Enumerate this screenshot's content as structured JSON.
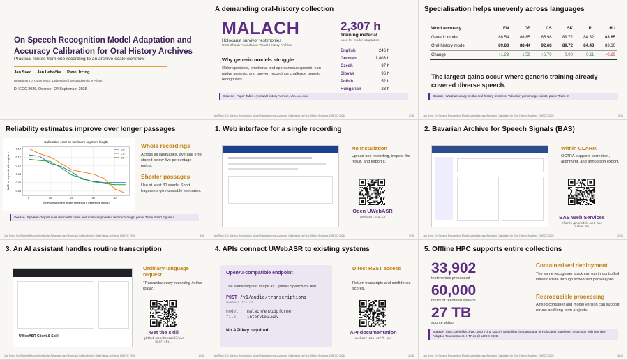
{
  "footer": "Jan Švec: On Speech Recognition Model Adaptation and Accuracy Calibration for Oral History Archives, DHECC 2026",
  "slides": [
    {
      "title": "On Speech Recognition Model Adaptation and Accuracy Calibration for Oral History Archives",
      "subtitle": "Practical routes from one recording to an archive-scale workflow",
      "authors": [
        "Jan Švec",
        "Jan Lehečka",
        "Pavel Ircing"
      ],
      "affiliation": "Department of Cybernetics, University of West Bohemia in Pilsen",
      "venue": "DHECC 2026, Odense",
      "date": "24 September 2026"
    },
    {
      "title": "A demanding oral-history collection",
      "collection": "MALACH",
      "collection_desc": "Holocaust survivor testimonies",
      "archive": "USC Shoah Foundation Visual History Archive",
      "heading": "Why generic models struggle",
      "text": "Older speakers, emotional and spontaneous speech, non-native accents, and uneven recordings challenge generic recognisers.",
      "hours": "2,307 h",
      "hours_label": "Training material",
      "hours_note": "used for model adaptation",
      "languages": [
        [
          "English",
          "246 h"
        ],
        [
          "German",
          "1,803 h"
        ],
        [
          "Czech",
          "87 h"
        ],
        [
          "Slovak",
          "96 h"
        ],
        [
          "Polish",
          "52 h"
        ],
        [
          "Hungarian",
          "23 h"
        ]
      ],
      "source_label": "Source",
      "source": "Paper Table 1; Visual History Archive,",
      "source_link": "vha.usc.edu",
      "page": "3/16"
    },
    {
      "title": "Specialisation helps unevenly across languages",
      "table": {
        "header": [
          "Word accuracy",
          "EN",
          "DE",
          "CS",
          "SK",
          "PL",
          "HU"
        ],
        "rows": [
          [
            "Generic model",
            88.54,
            86.85,
            85.98,
            89.72,
            84.32,
            83.65
          ],
          [
            "Oral-history model",
            89.83,
            88.44,
            92.68,
            89.72,
            84.43,
            83.36
          ],
          [
            "Change",
            "+1.29",
            "+1.59",
            "+6.70",
            "0.00",
            "+0.11",
            "−0.29"
          ]
        ]
      },
      "text": "The largest gains occur where generic training already covered diverse speech.",
      "source_label": "Source",
      "source": "Word accuracy on the oral-history test sets. Values in percentage points; paper Table 2.",
      "page": "4/16"
    },
    {
      "title": "Reliability estimates improve over longer passages",
      "chart": {
        "type": "line",
        "title": "Calibration error by minimum segment length",
        "xlabel": "Minimum segment length threshold n (reference words)",
        "ylabel": "MAE for segments with length ≥ n",
        "x": [
          0,
          5,
          10,
          15,
          20,
          25,
          30,
          35,
          40,
          45
        ],
        "series": [
          {
            "name": "EN",
            "color": "#1f77b4",
            "values": [
              0.125,
              0.122,
              0.105,
              0.098,
              0.085,
              0.068,
              0.063,
              0.06,
              0.06,
              0.06
            ]
          },
          {
            "name": "CS",
            "color": "#ff7f0e",
            "values": [
              0.14,
              0.128,
              0.12,
              0.105,
              0.09,
              0.085,
              0.08,
              0.07,
              0.045,
              0.035
            ]
          },
          {
            "name": "SK",
            "color": "#2ca02c",
            "values": [
              0.115,
              0.112,
              0.11,
              0.095,
              0.078,
              0.07,
              0.062,
              0.058,
              0.055,
              0.055
            ]
          }
        ],
        "xlim": [
          -3,
          47
        ],
        "ylim": [
          0.03,
          0.145
        ],
        "xticks": [
          0,
          10,
          20,
          30,
          40
        ],
        "yticks": [
          0.04,
          0.06,
          0.08,
          {
            "value": 0.1,
            "label": "0.10"
          },
          0.12,
          0.14
        ],
        "grid": true,
        "legend": "upper right"
      },
      "heading1": "Whole recordings",
      "text1": "Across all languages, average error stayed below five percentage points.",
      "heading2": "Shorter passages",
      "text2": "Use at least 30 words. Short fragments give unstable estimates.",
      "source_label": "Source",
      "source": "Speaker-disjoint evaluation with clean and noise-augmented test recordings; paper Table 3 and Figure 4.",
      "page": "8/16"
    },
    {
      "title": "1. Web interface for a single recording",
      "heading": "No installation",
      "text": "Upload one recording, inspect the result, and export it.",
      "link_label": "Open UWebASR",
      "url": "uwebasr.zcu.cz",
      "page": "9/16"
    },
    {
      "title": "2. Bavarian Archive for Speech Signals (BAS)",
      "heading": "Within CLARIN",
      "text": "OCTRA supports correction, alignment, and annotation export.",
      "link_label": "BAS Web Services",
      "url": "clarin.phonetik.uni-muenchen.de",
      "page": "10/16"
    },
    {
      "title": "3. An AI assistant handles routine transcription",
      "heading": "Ordinary-language request",
      "text": "“Transcribe every recording in this folder.”",
      "link_label": "Get the skill",
      "url": "github.com/honzas83/uwebasr-skill",
      "screenshot_caption": "UWebASR Client & Skill",
      "page": "11/16"
    },
    {
      "title": "4. APIs connect UWebASR to existing systems",
      "box_title": "OpenAI-compatible endpoint",
      "box_text": "The same request shape as OpenAI Speech-to-Text.",
      "method": "POST",
      "endpoint": "/v1/audio/transcriptions",
      "host": "uwebasr.zcu.cz",
      "params": [
        [
          "model",
          "malach/en/zipformer"
        ],
        [
          "file",
          "interview.wav"
        ]
      ],
      "box_note": "No API key required.",
      "heading": "Direct REST access",
      "text": "Return transcripts and confidence scores.",
      "link_label": "API documentation",
      "url": "uwebasr.zcu.cz/#k-api",
      "page": "12/16"
    },
    {
      "title": "5. Offline HPC supports entire collections",
      "stats": [
        [
          "33,902",
          "testimonies processed"
        ],
        [
          "60,000",
          "hours of recorded speech"
        ],
        [
          "27 TB",
          "source video"
        ]
      ],
      "heading1": "Containerised deployment",
      "text1": "The same recogniser stack can run in controlled infrastructure through scheduled parallel jobs.",
      "heading2": "Reproducible processing",
      "text2": "A fixed container and model version can support reruns and long-term projects.",
      "source_label": "Source",
      "source": "Švec, Lehečka, Švec, and Ircing (2026). Modelling the Language of Holocaust Survivors' Testimony with Domain-Adapted Transformers. HTRes @ LREC 2026.",
      "page": "16/16"
    }
  ]
}
